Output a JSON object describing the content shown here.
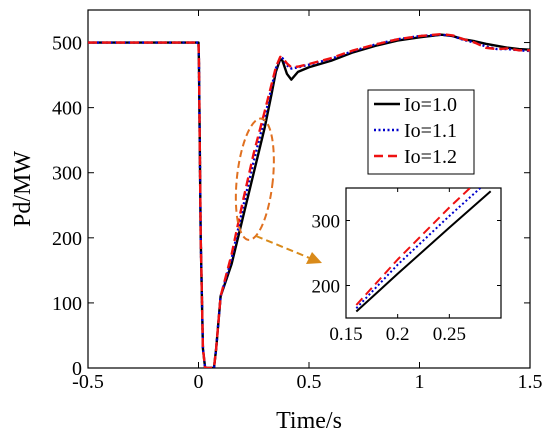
{
  "chart_data": [
    {
      "type": "line",
      "xlabel": "Time/s",
      "ylabel": "Pd/MW",
      "xlim": [
        -0.5,
        1.5
      ],
      "ylim": [
        0,
        550
      ],
      "xticks": [
        "-0.5",
        "0",
        "0.5",
        "1",
        "1.5"
      ],
      "yticks": [
        "0",
        "100",
        "200",
        "300",
        "400",
        "500"
      ],
      "grid": false,
      "legend_position": "top-right",
      "series": [
        {
          "name": "Io=1.0",
          "color": "#000000",
          "style": "solid",
          "x": [
            -0.5,
            0.0,
            0.002,
            0.01,
            0.02,
            0.03,
            0.05,
            0.07,
            0.08,
            0.1,
            0.15,
            0.2,
            0.25,
            0.3,
            0.33,
            0.35,
            0.37,
            0.38,
            0.4,
            0.42,
            0.45,
            0.5,
            0.6,
            0.7,
            0.8,
            0.9,
            1.0,
            1.1,
            1.15,
            1.2,
            1.25,
            1.3,
            1.35,
            1.4,
            1.45,
            1.5
          ],
          "y": [
            500,
            500,
            470,
            200,
            30,
            0,
            0,
            0,
            30,
            110,
            160,
            230,
            300,
            370,
            420,
            455,
            475,
            472,
            452,
            443,
            455,
            462,
            472,
            485,
            495,
            503,
            508,
            512,
            510,
            505,
            502,
            498,
            495,
            492,
            490,
            489
          ]
        },
        {
          "name": "Io=1.1",
          "color": "#0000cc",
          "style": "dotted",
          "x": [
            -0.5,
            0.0,
            0.002,
            0.01,
            0.02,
            0.03,
            0.05,
            0.07,
            0.08,
            0.1,
            0.15,
            0.2,
            0.25,
            0.3,
            0.33,
            0.35,
            0.37,
            0.38,
            0.4,
            0.42,
            0.45,
            0.5,
            0.6,
            0.7,
            0.8,
            0.9,
            1.0,
            1.1,
            1.15,
            1.2,
            1.25,
            1.3,
            1.35,
            1.4,
            1.45,
            1.5
          ],
          "y": [
            500,
            500,
            470,
            200,
            30,
            0,
            0,
            0,
            30,
            110,
            168,
            245,
            318,
            385,
            430,
            460,
            477,
            476,
            465,
            460,
            462,
            466,
            475,
            487,
            497,
            505,
            510,
            512,
            510,
            504,
            500,
            494,
            490,
            490,
            488,
            487
          ]
        },
        {
          "name": "Io=1.2",
          "color": "#ee1111",
          "style": "dashed",
          "x": [
            -0.5,
            0.0,
            0.002,
            0.01,
            0.02,
            0.03,
            0.05,
            0.07,
            0.08,
            0.1,
            0.15,
            0.2,
            0.25,
            0.3,
            0.33,
            0.35,
            0.37,
            0.38,
            0.4,
            0.42,
            0.45,
            0.5,
            0.6,
            0.7,
            0.8,
            0.9,
            1.0,
            1.1,
            1.15,
            1.2,
            1.25,
            1.3,
            1.35,
            1.4,
            1.45,
            1.5
          ],
          "y": [
            500,
            500,
            470,
            200,
            30,
            0,
            0,
            0,
            30,
            110,
            175,
            255,
            330,
            395,
            435,
            462,
            478,
            477,
            468,
            462,
            463,
            467,
            476,
            488,
            497,
            505,
            510,
            513,
            511,
            505,
            500,
            492,
            490,
            491,
            488,
            488
          ]
        }
      ]
    },
    {
      "type": "line",
      "inset": true,
      "xlim": [
        0.15,
        0.3
      ],
      "ylim": [
        150,
        350
      ],
      "xticks": [
        "0.15",
        "0.2",
        "0.25"
      ],
      "yticks": [
        "200",
        "300"
      ],
      "series": [
        {
          "name": "Io=1.0",
          "color": "#000000",
          "style": "solid",
          "x": [
            0.16,
            0.2,
            0.25,
            0.29
          ],
          "y": [
            160,
            218,
            289,
            345
          ]
        },
        {
          "name": "Io=1.1",
          "color": "#0000cc",
          "style": "dotted",
          "x": [
            0.16,
            0.2,
            0.25,
            0.28
          ],
          "y": [
            165,
            232,
            307,
            350
          ]
        },
        {
          "name": "Io=1.2",
          "color": "#ee1111",
          "style": "dashed",
          "x": [
            0.16,
            0.2,
            0.25,
            0.27
          ],
          "y": [
            170,
            240,
            320,
            350
          ]
        }
      ]
    }
  ],
  "annotation": {
    "ellipse_color": "#e07020",
    "arrow_color": "#d98a1a"
  }
}
